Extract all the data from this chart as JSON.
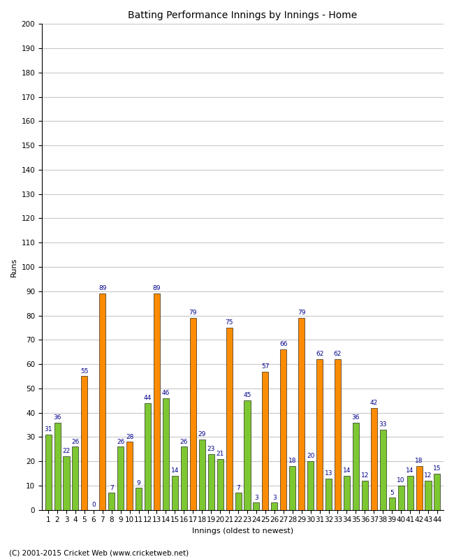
{
  "title": "Batting Performance Innings by Innings - Home",
  "xlabel": "Innings (oldest to newest)",
  "ylabel": "Runs",
  "footer": "(C) 2001-2015 Cricket Web (www.cricketweb.net)",
  "ylim": [
    0,
    200
  ],
  "yticks": [
    0,
    10,
    20,
    30,
    40,
    50,
    60,
    70,
    80,
    90,
    100,
    110,
    120,
    130,
    140,
    150,
    160,
    170,
    180,
    190,
    200
  ],
  "innings": [
    1,
    2,
    3,
    4,
    5,
    6,
    7,
    8,
    9,
    10,
    11,
    12,
    13,
    14,
    15,
    16,
    17,
    18,
    19,
    20,
    21,
    22,
    23,
    24,
    25,
    26,
    27,
    28,
    29,
    30,
    31,
    32,
    33,
    34,
    35,
    36,
    37,
    38,
    39,
    40,
    41,
    42,
    43,
    44
  ],
  "values": [
    31,
    36,
    22,
    26,
    55,
    0,
    89,
    7,
    26,
    28,
    9,
    44,
    89,
    46,
    14,
    26,
    79,
    29,
    23,
    21,
    75,
    7,
    45,
    3,
    57,
    3,
    66,
    18,
    79,
    20,
    62,
    13,
    62,
    14,
    36,
    12,
    42,
    33,
    5,
    10,
    14,
    18,
    12,
    15
  ],
  "colors": [
    "green",
    "green",
    "green",
    "green",
    "orange",
    "orange",
    "orange",
    "green",
    "green",
    "orange",
    "green",
    "green",
    "orange",
    "green",
    "green",
    "green",
    "orange",
    "green",
    "green",
    "green",
    "orange",
    "green",
    "green",
    "green",
    "orange",
    "green",
    "orange",
    "green",
    "orange",
    "green",
    "orange",
    "green",
    "orange",
    "green",
    "green",
    "green",
    "orange",
    "green",
    "green",
    "green",
    "green",
    "orange",
    "green",
    "green"
  ],
  "bar_color_green": "#7DC832",
  "bar_color_orange": "#FF8C00",
  "label_color": "#00008B",
  "bg_color": "#FFFFFF",
  "grid_color": "#C8C8C8",
  "title_fontsize": 10,
  "label_fontsize": 6.5,
  "axis_fontsize": 8,
  "tick_fontsize": 7.5,
  "footer_fontsize": 7.5
}
